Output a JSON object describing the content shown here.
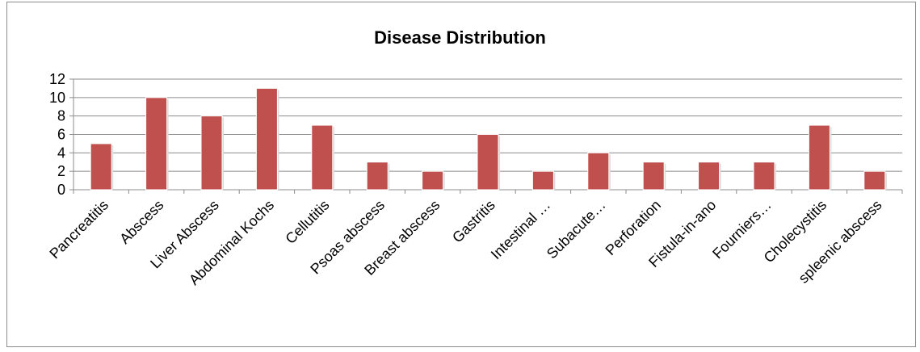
{
  "chart_data": {
    "type": "bar",
    "title": "Disease Distribution",
    "xlabel": "",
    "ylabel": "",
    "categories": [
      "Pancreatitis",
      "Abscess",
      "Liver Abscess",
      "Abdominal Kochs",
      "Cellutitis",
      "Psoas abscess",
      "Breast abscess",
      "Gastritis",
      "Intestinal …",
      "Subacute…",
      "Perforation",
      "Fistula-in-ano",
      "Fourniers…",
      "Cholecystitis",
      "spleenic abscess"
    ],
    "values": [
      5,
      10,
      8,
      11,
      7,
      3,
      2,
      6,
      2,
      4,
      3,
      3,
      3,
      7,
      2
    ],
    "ylim": [
      0,
      12
    ],
    "yticks": [
      0,
      2,
      4,
      6,
      8,
      10,
      12
    ],
    "grid": true,
    "legend": "none",
    "bar_color": "#c0504d"
  }
}
